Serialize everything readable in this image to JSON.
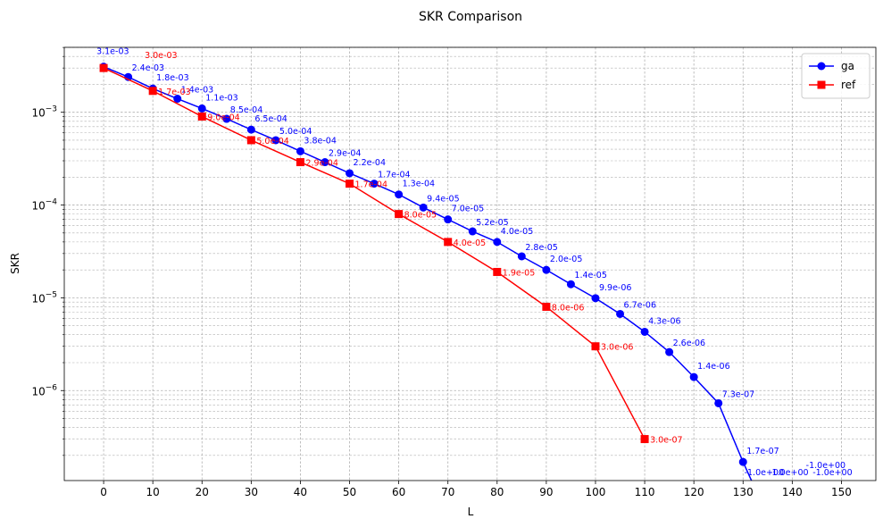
{
  "chart_data": {
    "type": "line",
    "title": "SKR Comparison",
    "xlabel": "L",
    "ylabel": "SKR",
    "yscale": "log",
    "xlim": [
      -8,
      157
    ],
    "ylim_log10": [
      -6.97,
      -2.3
    ],
    "x_ticks": [
      0,
      10,
      20,
      30,
      40,
      50,
      60,
      70,
      80,
      90,
      100,
      110,
      120,
      130,
      140,
      150
    ],
    "y_ticks": [
      {
        "exp": -3,
        "base": "10",
        "sup": "−3"
      },
      {
        "exp": -4,
        "base": "10",
        "sup": "−4"
      },
      {
        "exp": -5,
        "base": "10",
        "sup": "−5"
      },
      {
        "exp": -6,
        "base": "10",
        "sup": "−6"
      }
    ],
    "grid": true,
    "legend_position": "top-right",
    "series": [
      {
        "name": "ga",
        "color": "#0000ff",
        "marker": "circle",
        "points": [
          {
            "x": 0,
            "y": 0.0031,
            "label": "3.1e-03"
          },
          {
            "x": 5,
            "y": 0.0024,
            "label": "2.4e-03"
          },
          {
            "x": 10,
            "y": 0.0018,
            "label": "1.8e-03"
          },
          {
            "x": 15,
            "y": 0.0014,
            "label": "1.4e-03"
          },
          {
            "x": 20,
            "y": 0.0011,
            "label": "1.1e-03"
          },
          {
            "x": 25,
            "y": 0.00085,
            "label": "8.5e-04"
          },
          {
            "x": 30,
            "y": 0.00065,
            "label": "6.5e-04"
          },
          {
            "x": 35,
            "y": 0.0005,
            "label": "5.0e-04"
          },
          {
            "x": 40,
            "y": 0.00038,
            "label": "3.8e-04"
          },
          {
            "x": 45,
            "y": 0.00029,
            "label": "2.9e-04"
          },
          {
            "x": 50,
            "y": 0.00022,
            "label": "2.2e-04"
          },
          {
            "x": 55,
            "y": 0.00017,
            "label": "1.7e-04"
          },
          {
            "x": 60,
            "y": 0.00013,
            "label": "1.3e-04"
          },
          {
            "x": 65,
            "y": 9.4e-05,
            "label": "9.4e-05"
          },
          {
            "x": 70,
            "y": 7e-05,
            "label": "7.0e-05"
          },
          {
            "x": 75,
            "y": 5.2e-05,
            "label": "5.2e-05"
          },
          {
            "x": 80,
            "y": 4e-05,
            "label": "4.0e-05"
          },
          {
            "x": 85,
            "y": 2.8e-05,
            "label": "2.8e-05"
          },
          {
            "x": 90,
            "y": 2e-05,
            "label": "2.0e-05"
          },
          {
            "x": 95,
            "y": 1.4e-05,
            "label": "1.4e-05"
          },
          {
            "x": 100,
            "y": 9.9e-06,
            "label": "9.9e-06"
          },
          {
            "x": 105,
            "y": 6.7e-06,
            "label": "6.7e-06"
          },
          {
            "x": 110,
            "y": 4.3e-06,
            "label": "4.3e-06"
          },
          {
            "x": 115,
            "y": 2.6e-06,
            "label": "2.6e-06"
          },
          {
            "x": 120,
            "y": 1.4e-06,
            "label": "1.4e-06"
          },
          {
            "x": 125,
            "y": 7.3e-07,
            "label": "7.3e-07"
          },
          {
            "x": 130,
            "y": 1.7e-07,
            "label": "1.7e-07"
          },
          {
            "x": 135,
            "y": -1.0,
            "label": "-1.0e+00"
          },
          {
            "x": 140,
            "y": -1.0,
            "label": "-1.0e+00"
          },
          {
            "x": 145,
            "y": -1.0,
            "label": "-1.0e+00"
          },
          {
            "x": 150,
            "y": -1.0,
            "label": "-1.0e+00"
          }
        ]
      },
      {
        "name": "ref",
        "color": "#ff0000",
        "marker": "square",
        "points": [
          {
            "x": 0,
            "y": 0.003,
            "label": "3.0e-03"
          },
          {
            "x": 10,
            "y": 0.0017,
            "label": "1.7e-03"
          },
          {
            "x": 20,
            "y": 0.0009,
            "label": "9.0e-04"
          },
          {
            "x": 30,
            "y": 0.0005,
            "label": "5.0e-04"
          },
          {
            "x": 40,
            "y": 0.00029,
            "label": "2.9e-04"
          },
          {
            "x": 50,
            "y": 0.00017,
            "label": "1.7e-04"
          },
          {
            "x": 60,
            "y": 8e-05,
            "label": "8.0e-05"
          },
          {
            "x": 70,
            "y": 4e-05,
            "label": "4.0e-05"
          },
          {
            "x": 80,
            "y": 1.9e-05,
            "label": "1.9e-05"
          },
          {
            "x": 90,
            "y": 8e-06,
            "label": "8.0e-06"
          },
          {
            "x": 100,
            "y": 3e-06,
            "label": "3.0e-06"
          },
          {
            "x": 110,
            "y": 3e-07,
            "label": "3.0e-07"
          }
        ]
      }
    ]
  }
}
